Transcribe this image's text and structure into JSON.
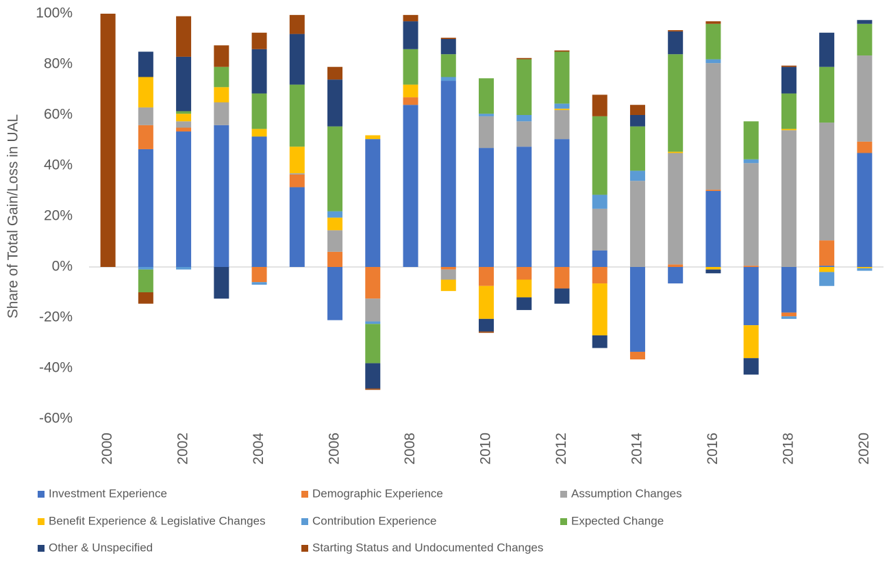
{
  "chart_data": {
    "type": "stacked_bar",
    "ylabel": "Share of Total Gain/Loss in UAL",
    "categories": [
      "2000",
      null,
      "2002",
      null,
      "2004",
      null,
      "2006",
      null,
      "2008",
      null,
      "2010",
      null,
      "2012",
      null,
      "2014",
      null,
      "2016",
      null,
      "2018",
      null,
      "2020"
    ],
    "series": [
      {
        "name": "Investment Experience",
        "color": "#4472c4",
        "values": [
          0,
          46.5,
          53.5,
          56,
          51.5,
          31.5,
          -21,
          50.5,
          64,
          73.5,
          47,
          47.5,
          50.5,
          6.5,
          -33.5,
          -6.5,
          30,
          -23,
          -18,
          0.5,
          45
        ]
      },
      {
        "name": "Demographic Experience",
        "color": "#ed7d31",
        "values": [
          0,
          9.5,
          1.5,
          0,
          -6,
          5,
          6,
          -12.5,
          3,
          -1,
          -7.5,
          -5,
          -8.5,
          -6.5,
          -3,
          1,
          0.5,
          0.5,
          -1.5,
          10,
          4.5
        ]
      },
      {
        "name": "Assumption Changes",
        "color": "#a5a5a5",
        "values": [
          0,
          7,
          2.5,
          9,
          0,
          0.5,
          8.5,
          -9,
          0,
          -4,
          12.5,
          10,
          11.5,
          16.5,
          34,
          44,
          50,
          40.5,
          54,
          46.5,
          34
        ]
      },
      {
        "name": "Benefit Experience & Legislative Changes",
        "color": "#ffc000",
        "values": [
          0,
          12,
          3,
          6,
          3,
          10.5,
          5,
          1.5,
          5,
          -4.5,
          -13,
          -7,
          0.5,
          -20.5,
          0,
          0.5,
          -1,
          -13,
          0.5,
          -2,
          -0.5
        ]
      },
      {
        "name": "Contribution Experience",
        "color": "#5b9bd5",
        "values": [
          0,
          -1,
          -1,
          0,
          -1,
          0,
          2.5,
          -1,
          0,
          1.5,
          1,
          2.5,
          2,
          5.5,
          4,
          0,
          1.5,
          1.5,
          -1,
          -5.5,
          -1
        ]
      },
      {
        "name": "Expected Change",
        "color": "#70ad47",
        "values": [
          0,
          -9,
          1,
          8,
          14,
          24.5,
          33.5,
          -15.5,
          14,
          9,
          14,
          22,
          20.5,
          31,
          17.5,
          38.5,
          14,
          15,
          14,
          22,
          12.5
        ]
      },
      {
        "name": "Other & Unspecified",
        "color": "#264478",
        "values": [
          0,
          10,
          21.5,
          -12.5,
          17.5,
          20,
          18.5,
          -10,
          11,
          6,
          -5,
          -5,
          -6,
          -5,
          4.5,
          9,
          -1.5,
          -6.5,
          10.5,
          13.5,
          1.5
        ]
      },
      {
        "name": "Starting Status and Undocumented Changes",
        "color": "#9e480e",
        "values": [
          100,
          -4.5,
          16,
          8.5,
          6.5,
          7.5,
          5,
          -0.5,
          2.5,
          0.5,
          -0.5,
          0.5,
          0.5,
          8.5,
          4,
          0.5,
          1,
          0,
          0.5,
          0,
          0
        ]
      }
    ],
    "ylim": [
      -60,
      100
    ],
    "yticks": [
      {
        "value": -60,
        "label": "-60%"
      },
      {
        "value": -40,
        "label": "-40%"
      },
      {
        "value": -20,
        "label": "-20%"
      },
      {
        "value": 0,
        "label": "0%"
      },
      {
        "value": 20,
        "label": "20%"
      },
      {
        "value": 40,
        "label": "40%"
      },
      {
        "value": 60,
        "label": "60%"
      },
      {
        "value": 80,
        "label": "80%"
      },
      {
        "value": 100,
        "label": "100%"
      }
    ],
    "grid": false,
    "legend": "bottom"
  }
}
